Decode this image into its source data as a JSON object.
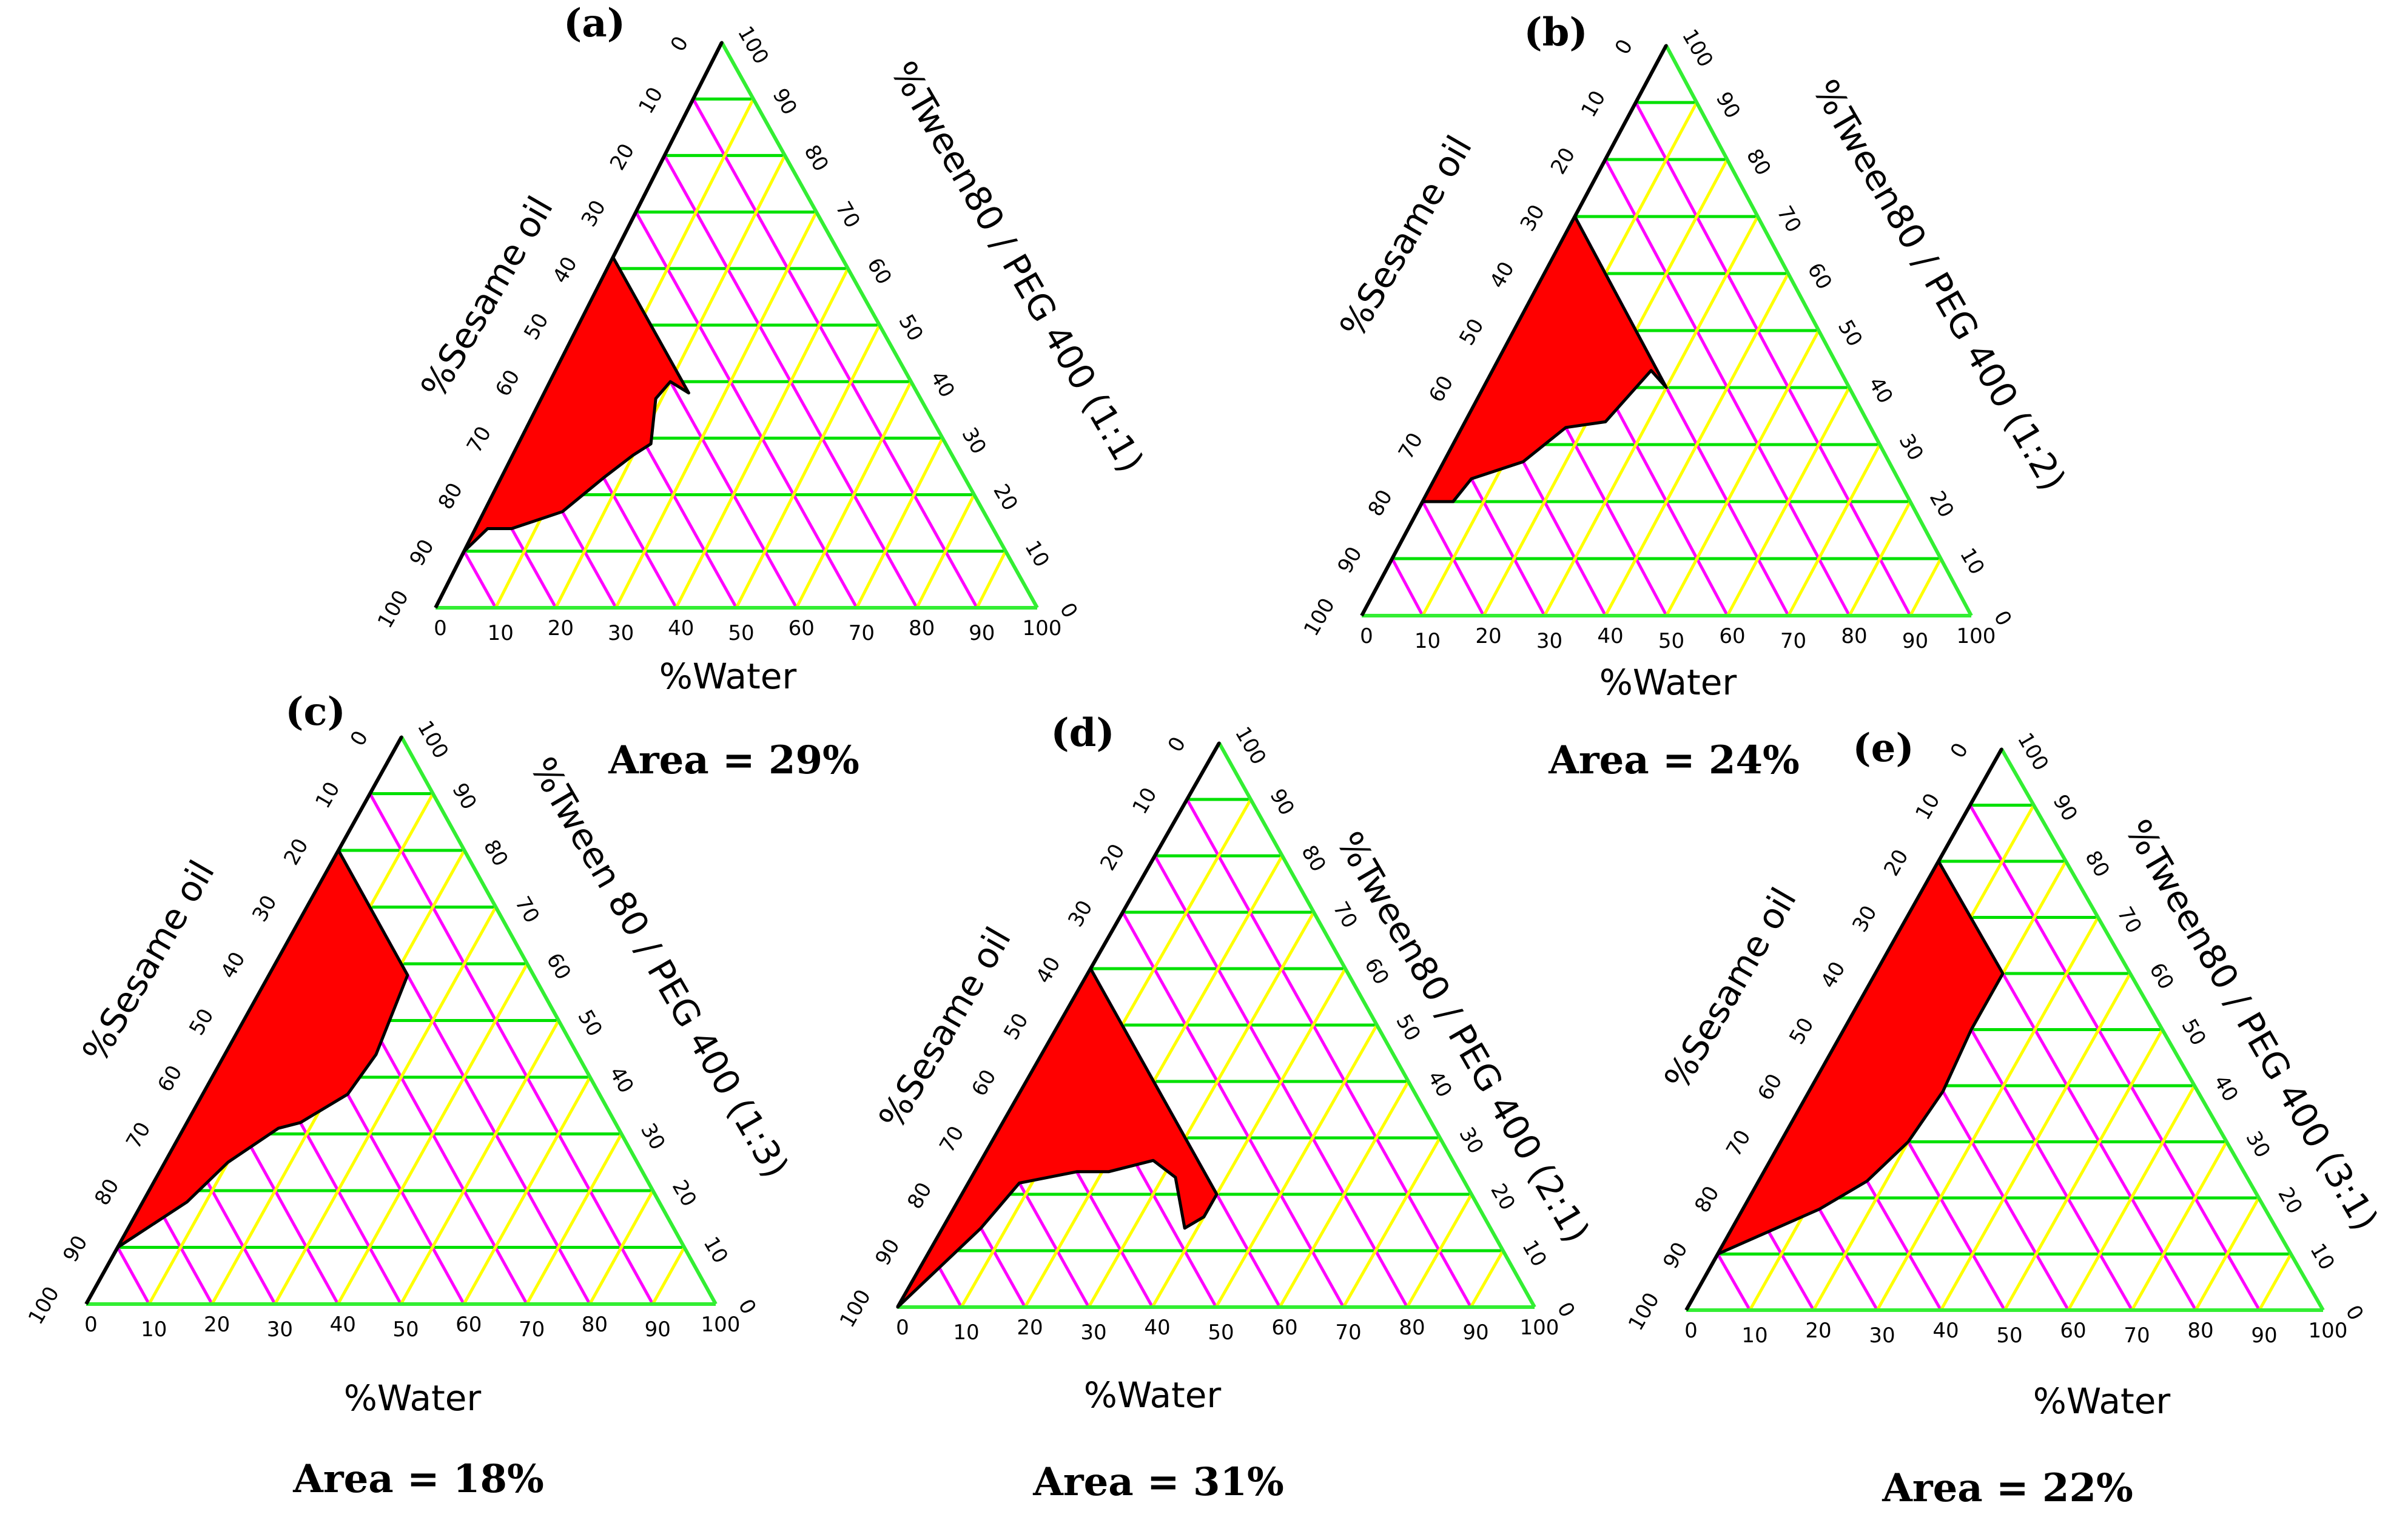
{
  "figure": {
    "description_free": true
  },
  "chart_data": [
    {
      "type": "ternary",
      "panel_letter": "(a)",
      "top_axis_label": "%Tween80 / PEG 400 (1:1)",
      "left_axis_label": "%Sesame oil",
      "bottom_axis_label": "%Water",
      "area_label": "Area = 29%",
      "tick_labels": [
        "0",
        "10",
        "20",
        "30",
        "40",
        "50",
        "60",
        "70",
        "80",
        "90",
        "100"
      ],
      "axis_ranges": {
        "water": [
          0,
          100
        ],
        "oil": [
          0,
          100
        ],
        "surfactant": [
          0,
          100
        ]
      },
      "region_boundary": [
        {
          "oil": 90,
          "water": 0
        },
        {
          "oil": 84,
          "water": 2
        },
        {
          "oil": 80,
          "water": 6
        },
        {
          "oil": 70,
          "water": 13
        },
        {
          "oil": 60,
          "water": 17
        },
        {
          "oil": 53,
          "water": 20
        },
        {
          "oil": 49,
          "water": 22
        },
        {
          "oil": 44,
          "water": 19
        },
        {
          "oil": 40,
          "water": 20
        },
        {
          "oil": 39,
          "water": 22
        },
        {
          "oil": 38,
          "water": 24
        },
        {
          "oil": 38,
          "water": 0
        }
      ]
    },
    {
      "type": "ternary",
      "panel_letter": "(b)",
      "top_axis_label": "%Tween80 / PEG 400 (1:2)",
      "left_axis_label": "%Sesame oil",
      "bottom_axis_label": "%Water",
      "area_label": "Area = 24%",
      "tick_labels": [
        "0",
        "10",
        "20",
        "30",
        "40",
        "50",
        "60",
        "70",
        "80",
        "90",
        "100"
      ],
      "axis_ranges": {
        "water": [
          0,
          100
        ],
        "oil": [
          0,
          100
        ],
        "surfactant": [
          0,
          100
        ]
      },
      "region_boundary": [
        {
          "oil": 80,
          "water": 0
        },
        {
          "oil": 75,
          "water": 5
        },
        {
          "oil": 70,
          "water": 6
        },
        {
          "oil": 60,
          "water": 13
        },
        {
          "oil": 50,
          "water": 17
        },
        {
          "oil": 43,
          "water": 23
        },
        {
          "oil": 35,
          "water": 25
        },
        {
          "oil": 31,
          "water": 26
        },
        {
          "oil": 30,
          "water": 30
        },
        {
          "oil": 30,
          "water": 0
        }
      ]
    },
    {
      "type": "ternary",
      "panel_letter": "(c)",
      "top_axis_label": "%Tween 80  / PEG 400 (1:3)",
      "left_axis_label": "%Sesame oil",
      "bottom_axis_label": "%Water",
      "area_label": "Area = 18%",
      "tick_labels": [
        "0",
        "10",
        "20",
        "30",
        "40",
        "50",
        "60",
        "70",
        "80",
        "90",
        "100"
      ],
      "axis_ranges": {
        "water": [
          0,
          100
        ],
        "oil": [
          0,
          100
        ],
        "surfactant": [
          0,
          100
        ]
      },
      "region_boundary": [
        {
          "oil": 90,
          "water": 0
        },
        {
          "oil": 75,
          "water": 7
        },
        {
          "oil": 65,
          "water": 10
        },
        {
          "oil": 54,
          "water": 15
        },
        {
          "oil": 50,
          "water": 18
        },
        {
          "oil": 40,
          "water": 23
        },
        {
          "oil": 32,
          "water": 24
        },
        {
          "oil": 20,
          "water": 22
        },
        {
          "oil": 20,
          "water": 0
        }
      ]
    },
    {
      "type": "ternary",
      "panel_letter": "(d)",
      "top_axis_label": "%Tween80 / PEG 400 (2:1)",
      "left_axis_label": "%Sesame oil",
      "bottom_axis_label": "%Water",
      "area_label": "Area = 31%",
      "tick_labels": [
        "0",
        "10",
        "20",
        "30",
        "40",
        "50",
        "60",
        "70",
        "80",
        "90",
        "100"
      ],
      "axis_ranges": {
        "water": [
          0,
          100
        ],
        "oil": [
          0,
          100
        ],
        "surfactant": [
          0,
          100
        ]
      },
      "region_boundary": [
        {
          "oil": 100,
          "water": 0
        },
        {
          "oil": 90,
          "water": 3
        },
        {
          "oil": 80,
          "water": 6
        },
        {
          "oil": 70,
          "water": 8
        },
        {
          "oil": 60,
          "water": 16
        },
        {
          "oil": 55,
          "water": 21
        },
        {
          "oil": 47,
          "water": 27
        },
        {
          "oil": 45,
          "water": 32
        },
        {
          "oil": 48,
          "water": 38
        },
        {
          "oil": 44,
          "water": 40
        },
        {
          "oil": 40,
          "water": 40
        },
        {
          "oil": 40,
          "water": 0
        }
      ]
    },
    {
      "type": "ternary",
      "panel_letter": "(e)",
      "top_axis_label": "%Tween80 / PEG 400 (3:1)",
      "left_axis_label": "%Sesame oil",
      "bottom_axis_label": "%Water",
      "area_label": "Area = 22%",
      "tick_labels": [
        "0",
        "10",
        "20",
        "30",
        "40",
        "50",
        "60",
        "70",
        "80",
        "90",
        "100"
      ],
      "axis_ranges": {
        "water": [
          0,
          100
        ],
        "oil": [
          0,
          100
        ],
        "surfactant": [
          0,
          100
        ]
      },
      "region_boundary": [
        {
          "oil": 90,
          "water": 0
        },
        {
          "oil": 85,
          "water": 3
        },
        {
          "oil": 70,
          "water": 12
        },
        {
          "oil": 60,
          "water": 17
        },
        {
          "oil": 50,
          "water": 20
        },
        {
          "oil": 40,
          "water": 21
        },
        {
          "oil": 30,
          "water": 20
        },
        {
          "oil": 20,
          "water": 20
        },
        {
          "oil": 20,
          "water": 0
        }
      ]
    }
  ],
  "colors": {
    "region_fill": "#ff0000",
    "region_stroke": "#000000",
    "horizontal_grid": "#00e000",
    "slash_grid": "#ff00ff",
    "backslash_grid": "#ffff00",
    "frame_black": "#000000",
    "frame_green": "#33ee33"
  }
}
